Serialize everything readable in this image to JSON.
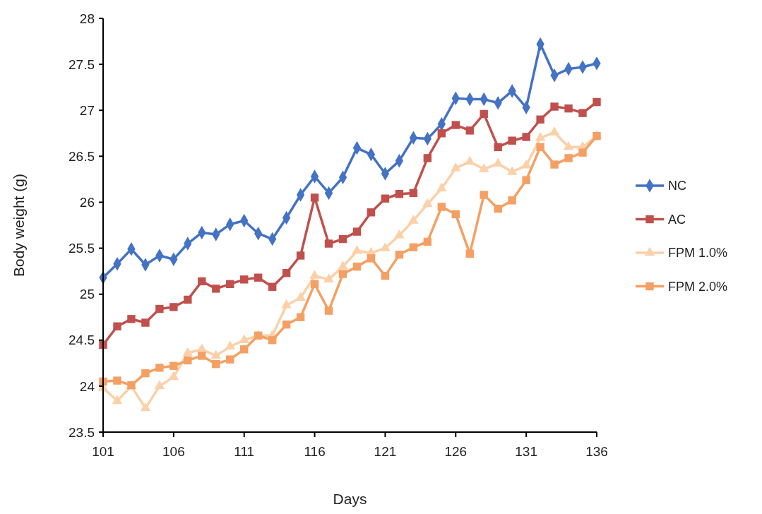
{
  "chart_data": {
    "type": "line",
    "xlabel": "Days",
    "ylabel": "Body weight (g)",
    "x": [
      101,
      102,
      103,
      104,
      105,
      106,
      107,
      108,
      109,
      110,
      111,
      112,
      113,
      114,
      115,
      116,
      117,
      118,
      119,
      120,
      121,
      122,
      123,
      124,
      125,
      126,
      127,
      128,
      129,
      130,
      131,
      132,
      133,
      134,
      135,
      136
    ],
    "xlim": [
      101,
      136
    ],
    "xticks": [
      101,
      106,
      111,
      116,
      121,
      126,
      131,
      136
    ],
    "ylim": [
      23.5,
      28
    ],
    "yticks": [
      23.5,
      24,
      24.5,
      25,
      25.5,
      26,
      26.5,
      27,
      27.5,
      28
    ],
    "grid": false,
    "legend": "right",
    "line_style": "solid",
    "series": [
      {
        "name": "NC",
        "color": "#4472c4",
        "marker": "diamond",
        "values": [
          25.18,
          25.33,
          25.49,
          25.32,
          25.42,
          25.38,
          25.55,
          25.67,
          25.65,
          25.76,
          25.8,
          25.66,
          25.6,
          25.83,
          26.08,
          26.28,
          26.1,
          26.27,
          26.59,
          26.52,
          26.31,
          26.45,
          26.7,
          26.69,
          26.85,
          27.13,
          27.12,
          27.12,
          27.08,
          27.21,
          27.03,
          27.72,
          27.38,
          27.45,
          27.47,
          27.51
        ]
      },
      {
        "name": "AC",
        "color": "#c0504d",
        "marker": "square",
        "values": [
          24.45,
          24.65,
          24.73,
          24.69,
          24.84,
          24.86,
          24.94,
          25.14,
          25.06,
          25.11,
          25.16,
          25.18,
          25.08,
          25.23,
          25.42,
          26.05,
          25.55,
          25.6,
          25.68,
          25.89,
          26.04,
          26.09,
          26.1,
          26.48,
          26.75,
          26.84,
          26.78,
          26.96,
          26.6,
          26.67,
          26.71,
          26.9,
          27.04,
          27.02,
          26.97,
          27.09
        ]
      },
      {
        "name": "FPM 1.0%",
        "color": "#fcd0a8",
        "marker": "triangle",
        "values": [
          23.98,
          23.84,
          24.0,
          23.76,
          24.0,
          24.1,
          24.36,
          24.4,
          24.33,
          24.43,
          24.5,
          24.55,
          24.55,
          24.88,
          24.96,
          25.2,
          25.16,
          25.3,
          25.47,
          25.45,
          25.5,
          25.64,
          25.8,
          25.98,
          26.15,
          26.37,
          26.44,
          26.36,
          26.42,
          26.33,
          26.4,
          26.7,
          26.76,
          26.6,
          26.6,
          26.72
        ]
      },
      {
        "name": "FPM 2.0%",
        "color": "#f4a064",
        "marker": "square",
        "values": [
          24.05,
          24.06,
          24.01,
          24.14,
          24.2,
          24.22,
          24.28,
          24.33,
          24.24,
          24.29,
          24.4,
          24.55,
          24.5,
          24.67,
          24.75,
          25.11,
          24.82,
          25.22,
          25.3,
          25.39,
          25.2,
          25.43,
          25.51,
          25.57,
          25.95,
          25.87,
          25.44,
          26.08,
          25.93,
          26.02,
          26.24,
          26.6,
          26.41,
          26.48,
          26.54,
          26.72
        ]
      }
    ]
  }
}
